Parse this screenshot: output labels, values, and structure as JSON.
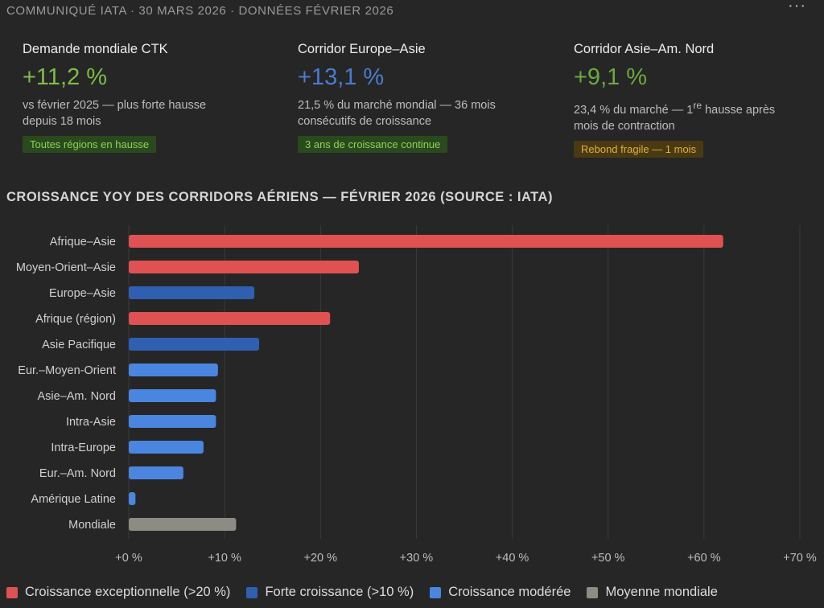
{
  "header": {
    "text": "COMMUNIQUÉ IATA · 30 MARS 2026 · DONNÉES FÉVRIER 2026",
    "menu_label": "···"
  },
  "kpis": [
    {
      "title": "Demande mondiale CTK",
      "value": "+11,2 %",
      "value_color": "#7dbd4a",
      "desc_line1": "vs février 2025 — plus forte hausse",
      "desc_line2": "depuis 18 mois",
      "badge": "Toutes régions en hausse",
      "badge_bg": "#2a4a1e",
      "badge_fg": "#8fd15a"
    },
    {
      "title": "Corridor Europe–Asie",
      "value": "+13,1 %",
      "value_color": "#4a7cd0",
      "desc_line1": "21,5 % du marché mondial — 36 mois",
      "desc_line2": "consécutifs de croissance",
      "badge": "3 ans de croissance continue",
      "badge_bg": "#2a4a1e",
      "badge_fg": "#8fd15a"
    },
    {
      "title": "Corridor Asie–Am. Nord",
      "value": "+9,1 %",
      "value_color": "#6aaa3e",
      "desc_line1_pre": "23,4 % du marché — 1",
      "desc_line1_sup": "re",
      "desc_line1_post": " hausse après",
      "desc_line2": "mois de contraction",
      "badge": "Rebond fragile — 1 mois",
      "badge_bg": "#4a3a12",
      "badge_fg": "#e0b040"
    }
  ],
  "chart_title": "CROISSANCE YOY DES CORRIDORS AÉRIENS — FÉVRIER 2026 (SOURCE : IATA)",
  "chart_data": {
    "type": "bar",
    "orientation": "horizontal",
    "categories": [
      "Afrique–Asie",
      "Moyen-Orient–Asie",
      "Europe–Asie",
      "Afrique (région)",
      "Asie Pacifique",
      "Eur.–Moyen-Orient",
      "Asie–Am. Nord",
      "Intra-Asie",
      "Intra-Europe",
      "Eur.–Am. Nord",
      "Amérique Latine",
      "Mondiale"
    ],
    "values": [
      62,
      24,
      13.1,
      21,
      13.6,
      9.3,
      9.1,
      9.1,
      7.8,
      5.7,
      0.7,
      11.2
    ],
    "groups": [
      "exceptional",
      "exceptional",
      "strong",
      "exceptional",
      "strong",
      "moderate",
      "moderate",
      "moderate",
      "moderate",
      "moderate",
      "moderate",
      "world"
    ],
    "xlim": [
      0,
      70
    ],
    "xticks": [
      0,
      10,
      20,
      30,
      40,
      50,
      60,
      70
    ],
    "xtick_labels": [
      "+0 %",
      "+10 %",
      "+20 %",
      "+30 %",
      "+40 %",
      "+50 %",
      "+60 %",
      "+70 %"
    ],
    "grid": true,
    "legend_position": "bottom",
    "colors": {
      "exceptional": "#e05252",
      "strong": "#2f5fb0",
      "moderate": "#4a86e0",
      "world": "#8c8c85"
    },
    "legend": [
      {
        "key": "exceptional",
        "label": "Croissance exceptionnelle (>20 %)"
      },
      {
        "key": "strong",
        "label": "Forte croissance (>10 %)"
      },
      {
        "key": "moderate",
        "label": "Croissance modérée"
      },
      {
        "key": "world",
        "label": "Moyenne mondiale"
      }
    ]
  }
}
